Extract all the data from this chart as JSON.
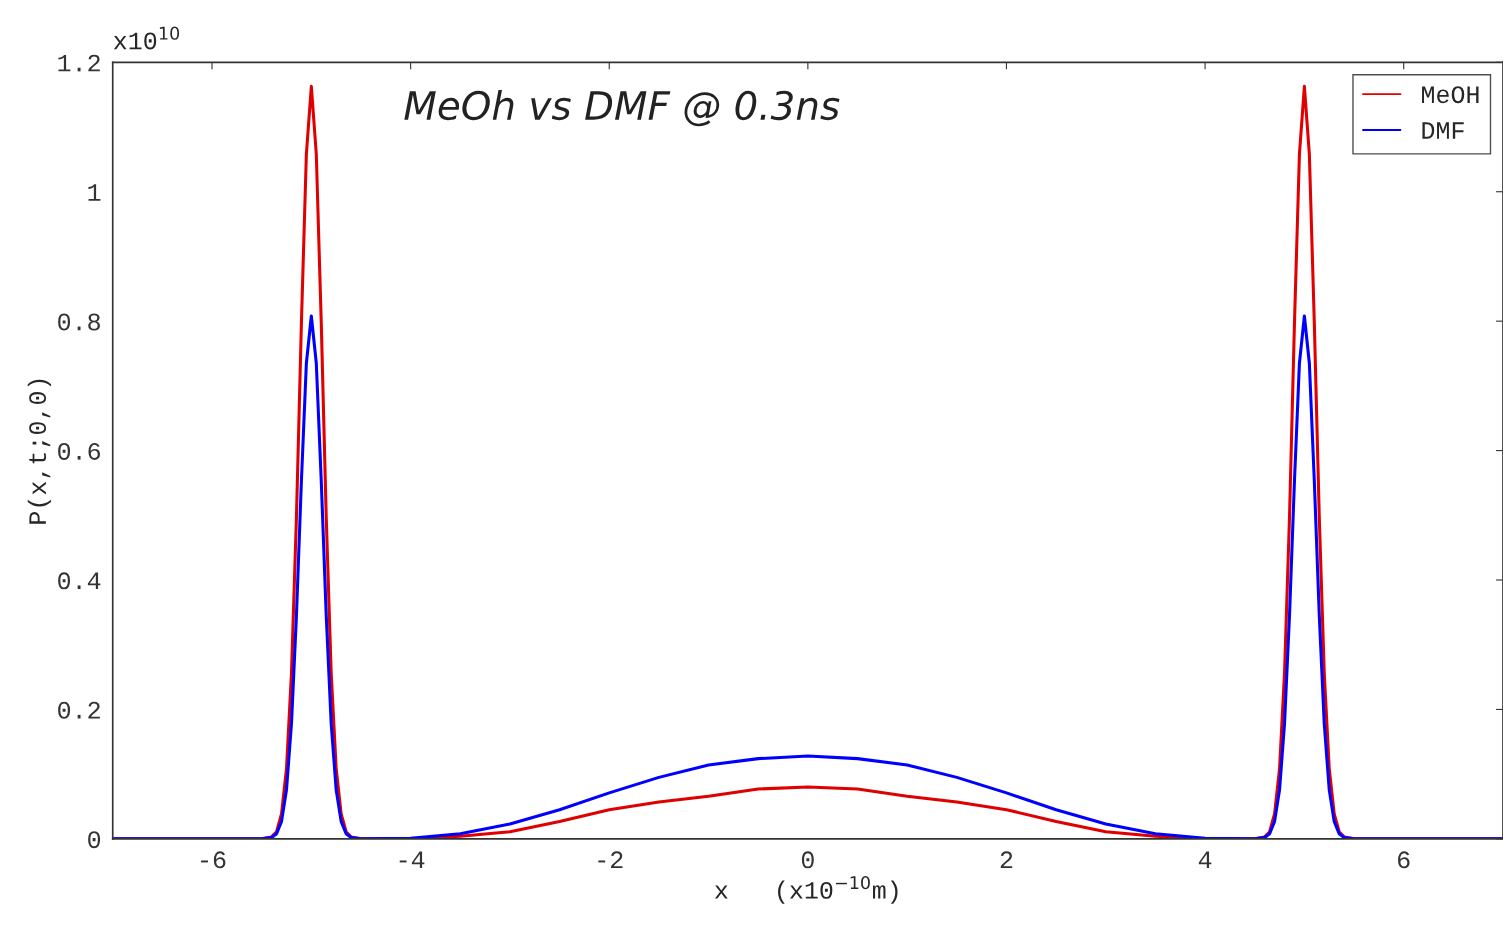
{
  "chart_data": {
    "type": "line",
    "title": "MeOh vs DMF @ 0.3ns",
    "xlabel": "x   (x10$^{−10}$m)",
    "ylabel": "P(x,t;0,0)",
    "annotations": [
      "x10$^{10}$"
    ],
    "x": [
      -7,
      -5.5,
      -5.4,
      -5.35,
      -5.3,
      -5.25,
      -5.2,
      -5.15,
      -5.1,
      -5.05,
      -5,
      -4.95,
      -4.9,
      -4.85,
      -4.8,
      -4.75,
      -4.7,
      -4.65,
      -4.6,
      -4.5,
      -4,
      -3.5,
      -3,
      -2.5,
      -2,
      -1.5,
      -1,
      -0.5,
      0,
      0.5,
      1,
      1.5,
      2,
      2.5,
      3,
      3.5,
      4,
      4.5,
      4.6,
      4.65,
      4.7,
      4.75,
      4.8,
      4.85,
      4.9,
      4.95,
      5,
      5.05,
      5.1,
      5.15,
      5.2,
      5.25,
      5.3,
      5.35,
      5.4,
      5.5,
      7
    ],
    "series": [
      {
        "name": "MeOH",
        "color": "#e00000",
        "values": [
          0,
          0,
          0.003,
          0.011,
          0.039,
          0.109,
          0.256,
          0.497,
          0.797,
          1.058,
          1.163,
          1.058,
          0.797,
          0.497,
          0.256,
          0.109,
          0.039,
          0.011,
          0.003,
          0,
          0,
          0.004,
          0.011,
          0.027,
          0.045,
          0.057,
          0.066,
          0.077,
          0.08,
          0.077,
          0.066,
          0.057,
          0.045,
          0.027,
          0.011,
          0.004,
          0,
          0,
          0.003,
          0.011,
          0.039,
          0.109,
          0.256,
          0.497,
          0.797,
          1.058,
          1.163,
          1.058,
          0.797,
          0.497,
          0.256,
          0.109,
          0.039,
          0.011,
          0.003,
          0,
          0
        ]
      },
      {
        "name": "DMF",
        "color": "#0000ff",
        "values": [
          0,
          0,
          0.002,
          0.008,
          0.027,
          0.076,
          0.178,
          0.345,
          0.553,
          0.735,
          0.808,
          0.735,
          0.553,
          0.345,
          0.178,
          0.076,
          0.027,
          0.008,
          0.002,
          0,
          0.001,
          0.008,
          0.023,
          0.045,
          0.071,
          0.095,
          0.114,
          0.124,
          0.128,
          0.124,
          0.114,
          0.095,
          0.071,
          0.045,
          0.023,
          0.008,
          0.001,
          0,
          0.002,
          0.008,
          0.027,
          0.076,
          0.178,
          0.345,
          0.553,
          0.735,
          0.808,
          0.735,
          0.553,
          0.345,
          0.178,
          0.076,
          0.027,
          0.008,
          0.002,
          0,
          0
        ]
      }
    ],
    "xlim": [
      -7,
      7
    ],
    "ylim": [
      0,
      1.2
    ],
    "xticks": [
      -6,
      -4,
      -2,
      0,
      2,
      4,
      6
    ],
    "yticks": [
      0,
      {
        "value": 0.2,
        "label": "0.2"
      },
      {
        "value": 0.4,
        "label": "0.4"
      },
      {
        "value": 0.6,
        "label": "0.6"
      },
      {
        "value": 0.8,
        "label": "0.8"
      },
      1,
      {
        "value": 1.2,
        "label": "1.2"
      }
    ],
    "legend": "top right",
    "grid": false,
    "marker": "none",
    "line_style": "solid"
  }
}
